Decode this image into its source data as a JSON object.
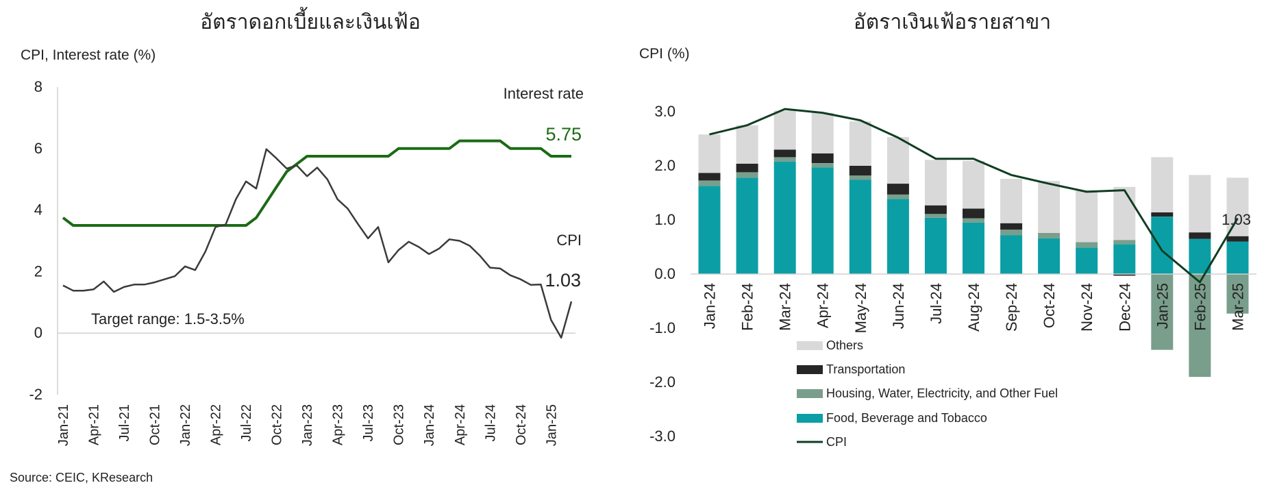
{
  "source": "Source: CEIC, KResearch",
  "chart_data": [
    {
      "type": "line",
      "title": "อัตราดอกเบี้ยและเงินเฟ้อ",
      "ylabel": "CPI, Interest rate (%)",
      "ylim": [
        -2,
        8
      ],
      "yticks": [
        "8",
        "6",
        "4",
        "2",
        "0",
        "-2"
      ],
      "xticks": [
        "Jan-21",
        "Apr-21",
        "Jul-21",
        "Oct-21",
        "Jan-22",
        "Apr-22",
        "Jul-22",
        "Oct-22",
        "Jan-23",
        "Apr-23",
        "Jul-23",
        "Oct-23",
        "Jan-24",
        "Apr-24",
        "Jul-24",
        "Oct-24",
        "Jan-25"
      ],
      "x_start": "Jan-21",
      "x_end": "Mar-25",
      "series": [
        {
          "name": "Interest rate",
          "color": "#1b6b14",
          "end_label": "5.75",
          "values": [
            3.75,
            3.5,
            3.5,
            3.5,
            3.5,
            3.5,
            3.5,
            3.5,
            3.5,
            3.5,
            3.5,
            3.5,
            3.5,
            3.5,
            3.5,
            3.5,
            3.5,
            3.5,
            3.5,
            3.75,
            4.25,
            4.75,
            5.25,
            5.5,
            5.75,
            5.75,
            5.75,
            5.75,
            5.75,
            5.75,
            5.75,
            5.75,
            5.75,
            6.0,
            6.0,
            6.0,
            6.0,
            6.0,
            6.0,
            6.25,
            6.25,
            6.25,
            6.25,
            6.25,
            6.0,
            6.0,
            6.0,
            6.0,
            5.75,
            5.75,
            5.75
          ]
        },
        {
          "name": "CPI",
          "color": "#3a3a3a",
          "end_label": "1.03",
          "values": [
            1.55,
            1.38,
            1.38,
            1.42,
            1.68,
            1.34,
            1.5,
            1.58,
            1.58,
            1.65,
            1.75,
            1.85,
            2.17,
            2.05,
            2.65,
            3.45,
            3.53,
            4.35,
            4.93,
            4.7,
            5.98,
            5.68,
            5.35,
            5.45,
            5.1,
            5.38,
            5.0,
            4.35,
            4.05,
            3.55,
            3.08,
            3.45,
            2.3,
            2.7,
            2.97,
            2.8,
            2.57,
            2.75,
            3.05,
            3.0,
            2.84,
            2.52,
            2.13,
            2.1,
            1.88,
            1.75,
            1.57,
            1.58,
            0.43,
            -0.15,
            1.03
          ]
        }
      ],
      "annotations": [
        "Target range: 1.5-3.5%"
      ]
    },
    {
      "type": "bar",
      "stacked": true,
      "title": "อัตราเงินเฟ้อรายสาขา",
      "ylabel": "CPI (%)",
      "ylim": [
        -3,
        3
      ],
      "yticks": [
        "3.0",
        "2.0",
        "1.0",
        "0.0",
        "-1.0",
        "-2.0",
        "-3.0"
      ],
      "categories": [
        "Jan-24",
        "Feb-24",
        "Mar-24",
        "Apr-24",
        "May-24",
        "Jun-24",
        "Jul-24",
        "Aug-24",
        "Sep-24",
        "Oct-24",
        "Nov-24",
        "Dec-24",
        "Jan-25",
        "Feb-25",
        "Mar-25"
      ],
      "series": [
        {
          "name": "Food, Beverage and Tobacco",
          "color": "#0b9fa5",
          "values": [
            1.63,
            1.78,
            2.08,
            1.97,
            1.74,
            1.39,
            1.04,
            0.95,
            0.72,
            0.66,
            0.49,
            0.55,
            1.06,
            0.65,
            0.6
          ]
        },
        {
          "name": "Housing, Water, Electricity, and Other Fuel",
          "color": "#7a9e8c",
          "values": [
            0.1,
            0.1,
            0.08,
            0.08,
            0.08,
            0.08,
            0.07,
            0.08,
            0.1,
            0.1,
            0.1,
            0.08,
            -1.4,
            -1.9,
            -0.73
          ]
        },
        {
          "name": "Transportation",
          "color": "#262626",
          "values": [
            0.14,
            0.16,
            0.14,
            0.18,
            0.18,
            0.2,
            0.16,
            0.18,
            0.12,
            0.0,
            0.0,
            -0.03,
            0.08,
            0.12,
            0.1
          ]
        },
        {
          "name": "Others",
          "color": "#d9d9d9",
          "values": [
            0.71,
            0.71,
            0.72,
            0.75,
            0.82,
            0.86,
            0.84,
            0.88,
            0.82,
            0.96,
            0.96,
            0.98,
            1.02,
            1.06,
            1.08
          ]
        }
      ],
      "line": {
        "name": "CPI",
        "color": "#103d22",
        "end_label": "1.03",
        "values": [
          2.58,
          2.75,
          3.05,
          2.98,
          2.84,
          2.52,
          2.13,
          2.13,
          1.83,
          1.67,
          1.52,
          1.55,
          0.43,
          -0.15,
          1.03
        ]
      }
    }
  ]
}
